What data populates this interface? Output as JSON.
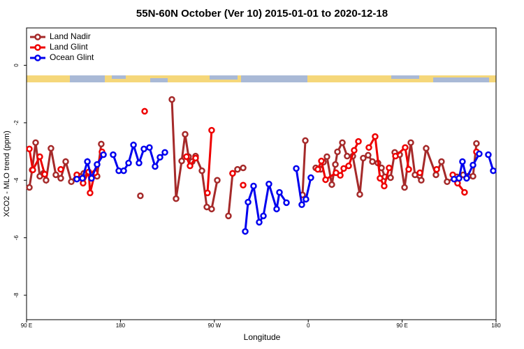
{
  "chart_data": {
    "type": "line",
    "title": "55N-60N October (Ver 10)   2015-01-01 to 2020-12-18",
    "x_label": "Longitude",
    "y_label": "XCO2 - MLO trend (ppm)",
    "legend": "top-left",
    "xlim": [
      90,
      540
    ],
    "xticks": [
      {
        "value": 90,
        "label": "90 E"
      },
      {
        "value": 180,
        "label": "180"
      },
      {
        "value": 270,
        "label": "90 W"
      },
      {
        "value": 360,
        "label": "0"
      },
      {
        "value": 450,
        "label": "90 E"
      },
      {
        "value": 540,
        "label": "180"
      }
    ],
    "ylim": [
      -8.85,
      1.3
    ],
    "yticks": [
      0,
      -2,
      -4,
      -6,
      -8
    ],
    "series": [
      {
        "name": "Land Nadir",
        "color": "#a52a2a",
        "x": [
          92.7,
          95.4,
          98.7,
          102.7,
          106.1,
          108.7,
          113.4,
          118.1,
          122.8,
          127.5,
          132.9,
          138.2,
          144.9,
          157.6,
          161.6,
          null,
          199.1,
          null,
          229.3,
          233.3,
          238.7,
          242.0,
          245.3,
          248.7,
          252.0,
          258.1,
          262.8,
          267.4,
          272.8,
          null,
          283.5,
          287.5,
          292.2,
          297.6,
          null,
          354.5,
          357.2,
          null,
          367.2,
          371.9,
          374.6,
          377.9,
          382.6,
          386.0,
          388.0,
          392.7,
          397.3,
          402.7,
          409.4,
          412.7,
          417.4,
          421.5,
          426.8,
          430.2,
          433.5,
          438.9,
          442.9,
          447.6,
          452.3,
          458.3,
          462.3,
          468.3,
          473.0,
          482.4,
          487.7,
          493.1,
          502.5,
          508.5,
          513.2,
          517.9,
          521.2
        ],
        "values": [
          -4.25,
          -3.64,
          -2.69,
          -3.86,
          -3.76,
          -4.0,
          -2.89,
          -3.81,
          -3.93,
          -3.35,
          -4.05,
          -3.81,
          -3.76,
          -3.86,
          -2.74,
          null,
          -4.54,
          null,
          -1.19,
          -4.64,
          -3.33,
          -2.4,
          -3.18,
          -3.35,
          -3.16,
          -3.67,
          -4.93,
          -5.0,
          -4.0,
          null,
          -5.24,
          -3.76,
          -3.62,
          -3.57,
          null,
          -4.51,
          -2.62,
          null,
          -3.57,
          -3.62,
          -3.37,
          -3.18,
          -4.15,
          -3.45,
          -3.01,
          -2.69,
          -3.16,
          -3.16,
          -4.49,
          -3.23,
          -3.13,
          -3.35,
          -3.4,
          -3.57,
          -3.88,
          -3.91,
          -3.03,
          -3.11,
          -4.25,
          -2.69,
          -3.81,
          -4.0,
          -2.89,
          -3.81,
          -3.35,
          -4.05,
          -3.88,
          -3.81,
          -3.86,
          -3.86,
          -2.72
        ]
      },
      {
        "name": "Land Glint",
        "color": "#ee0000",
        "x": [
          92.7,
          96.0,
          102.7,
          107.4,
          null,
          122.8,
          null,
          138.2,
          144.2,
          149.6,
          150.9,
          155.6,
          162.3,
          null,
          203.2,
          null,
          243.3,
          246.7,
          252.0,
          null,
          263.4,
          267.4,
          null,
          287.5,
          null,
          297.6,
          null,
          369.2,
          372.6,
          376.6,
          386.6,
          390.7,
          394.0,
          398.7,
          404.0,
          408.1,
          null,
          418.1,
          424.1,
          428.8,
          432.8,
          437.5,
          null,
          443.6,
          452.9,
          456.3,
          null,
          467.0,
          null,
          483.1,
          null,
          498.5,
          503.1,
          509.8,
          null,
          521.2
        ],
        "values": [
          -2.91,
          -3.64,
          -3.18,
          -3.79,
          null,
          -3.62,
          null,
          -3.81,
          -4.1,
          -3.71,
          -4.44,
          -3.74,
          -3.01,
          null,
          -1.6,
          null,
          -3.18,
          -3.5,
          -3.23,
          null,
          -4.44,
          -2.26,
          null,
          -3.76,
          null,
          -4.17,
          null,
          -3.62,
          -3.33,
          -3.98,
          -3.74,
          -3.83,
          -3.59,
          -3.5,
          -2.96,
          -2.65,
          null,
          -2.86,
          -2.48,
          -3.93,
          -4.2,
          -3.57,
          null,
          -3.16,
          -2.86,
          -3.62,
          null,
          -3.74,
          null,
          -3.62,
          null,
          -3.81,
          -4.1,
          -4.42,
          null,
          -3.01
        ]
      },
      {
        "name": "Ocean Glint",
        "color": "#0000ee",
        "x": [
          138.2,
          143.6,
          148.3,
          152.3,
          157.6,
          163.7,
          null,
          173.0,
          178.4,
          183.1,
          187.8,
          192.5,
          197.8,
          202.5,
          207.8,
          213.2,
          217.9,
          222.6,
          null,
          299.6,
          302.3,
          307.6,
          313.0,
          317.0,
          322.3,
          329.7,
          332.4,
          339.1,
          null,
          348.5,
          353.8,
          357.8,
          362.5,
          null,
          499.8,
          504.5,
          507.8,
          511.8,
          517.9,
          523.9,
          null,
          532.6,
          537.3
        ],
        "values": [
          -3.96,
          -3.93,
          -3.35,
          -3.93,
          -3.45,
          -3.11,
          null,
          -3.11,
          -3.67,
          -3.67,
          -3.4,
          -2.77,
          -3.4,
          -2.91,
          -2.86,
          -3.52,
          -3.2,
          -3.03,
          null,
          -5.78,
          -4.76,
          -4.2,
          -5.46,
          -5.24,
          -4.13,
          -5.0,
          -4.42,
          -4.78,
          null,
          -3.59,
          -4.85,
          -4.66,
          -3.91,
          null,
          -3.96,
          -3.93,
          -3.35,
          -3.93,
          -3.47,
          -3.08,
          null,
          -3.11,
          -3.67
        ]
      }
    ]
  }
}
